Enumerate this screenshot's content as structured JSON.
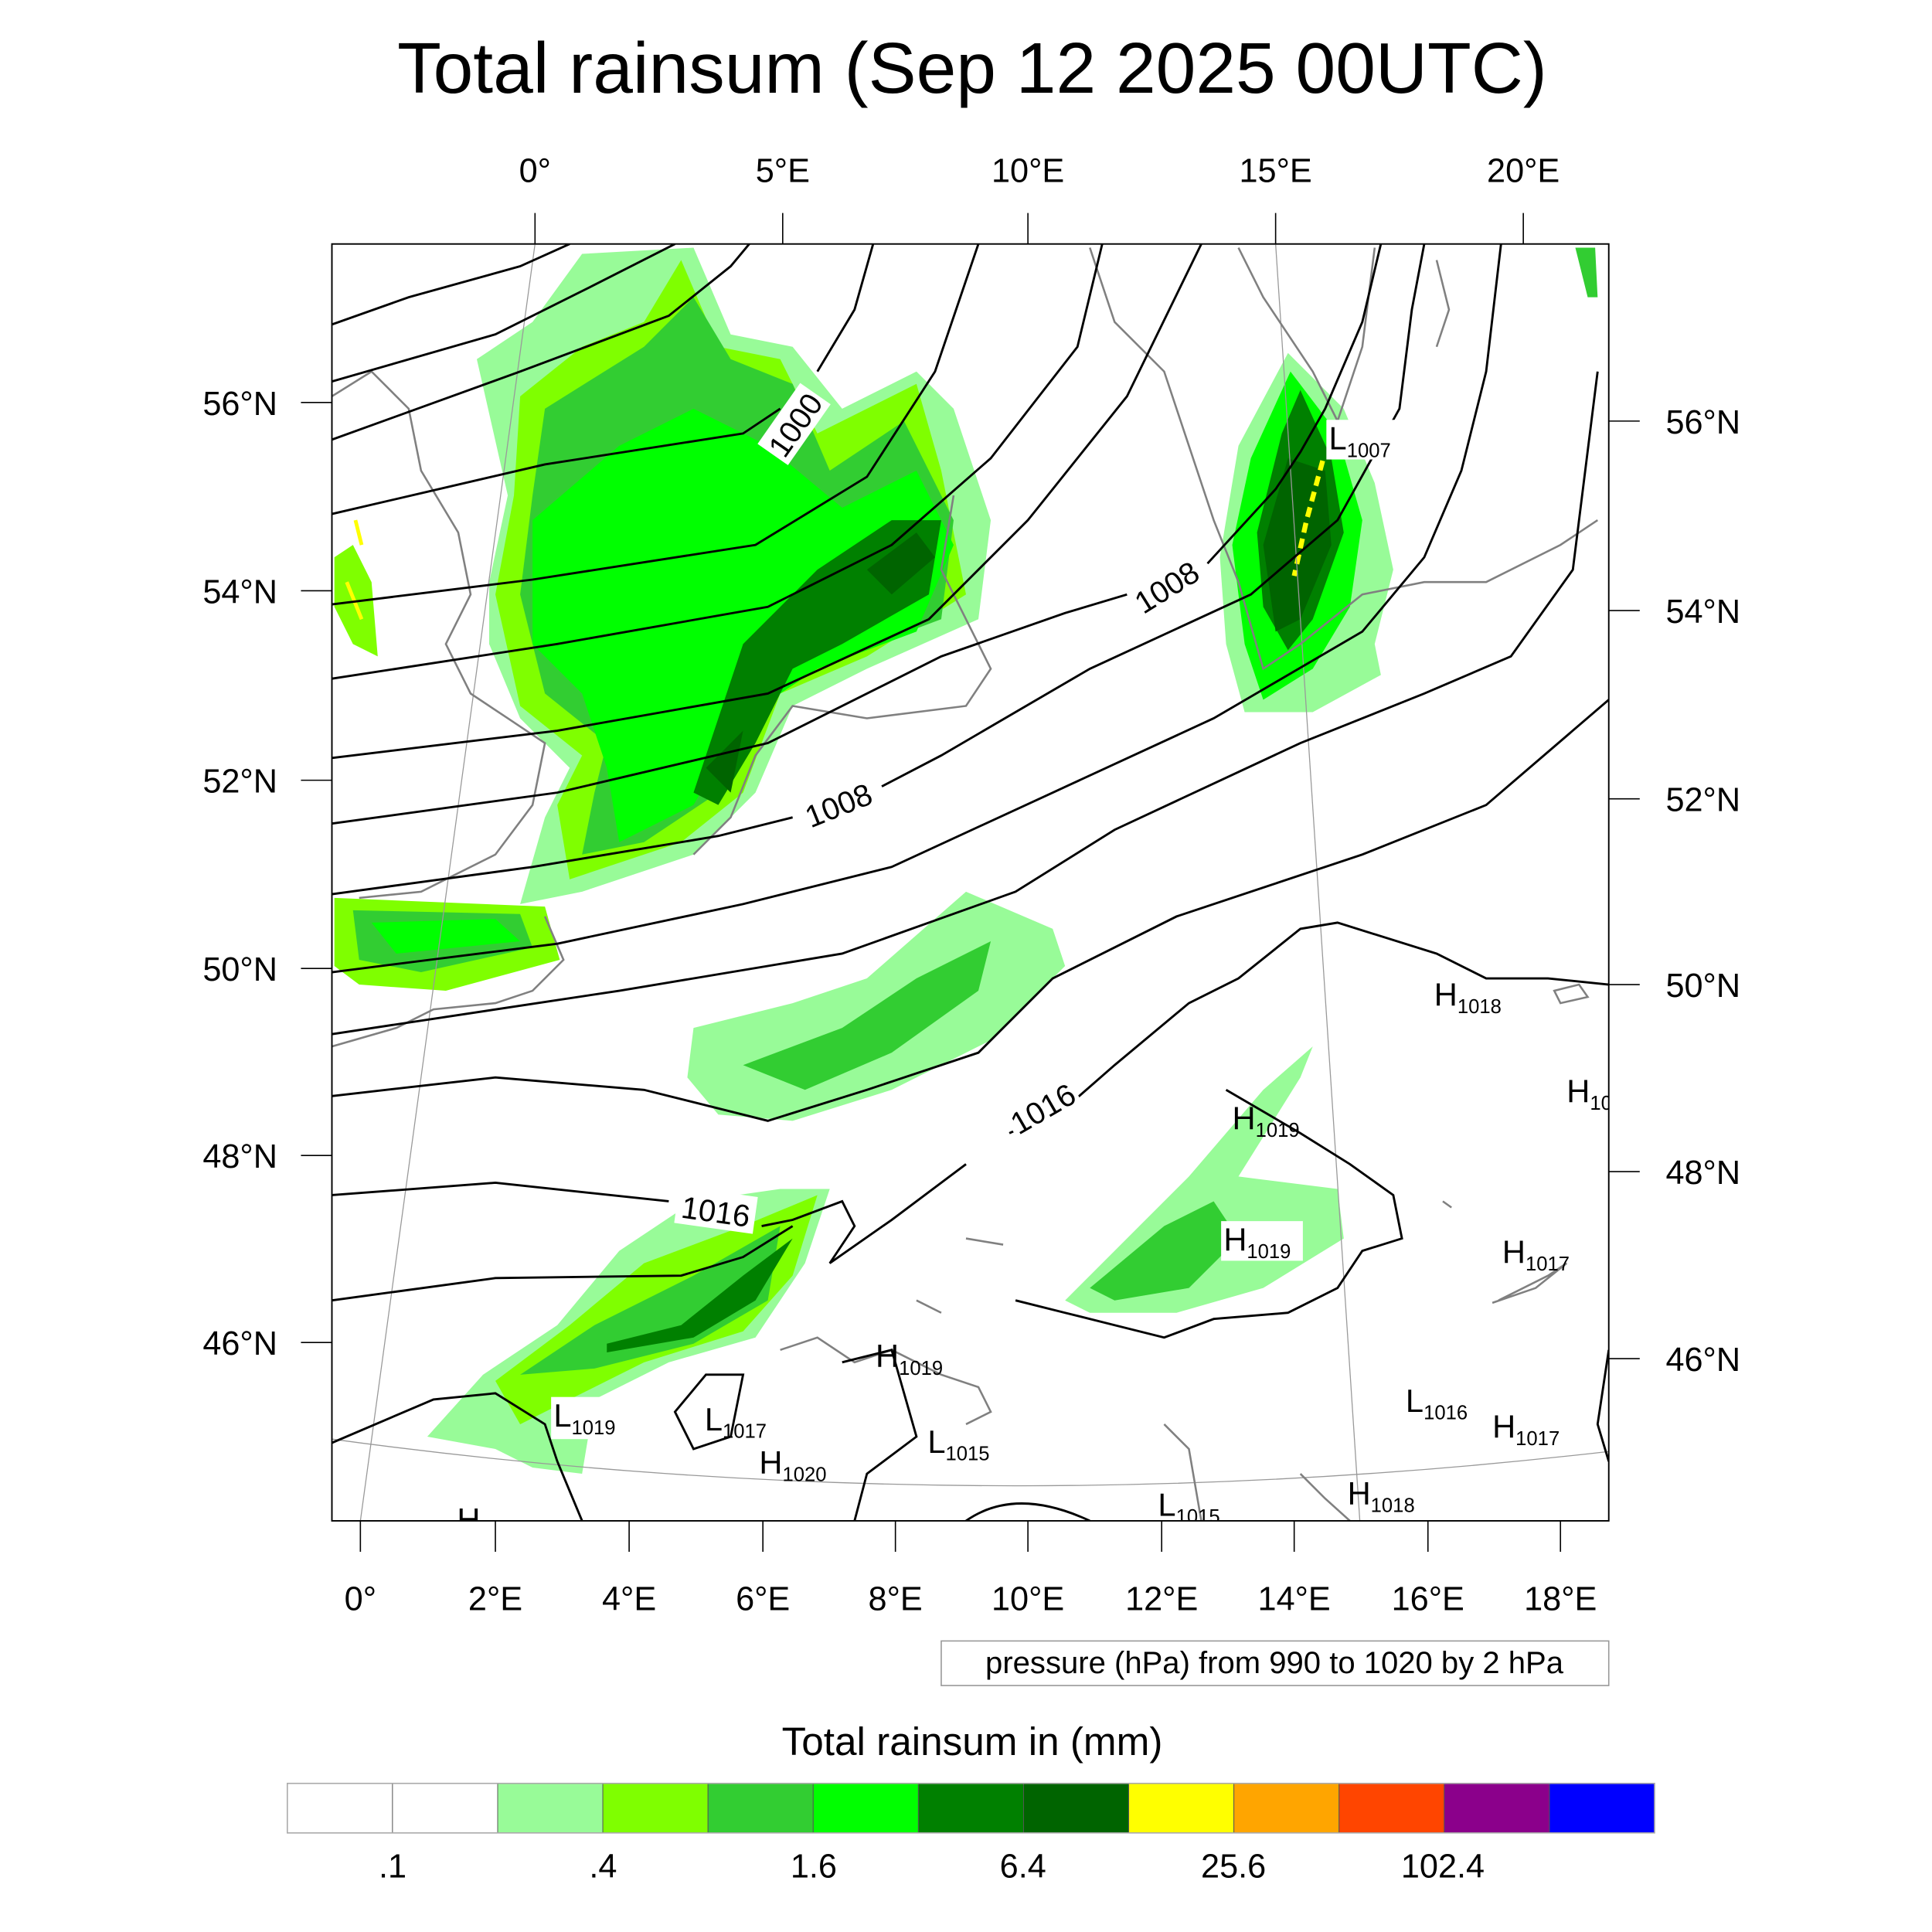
{
  "title": "Total rainsum (Sep 12 2025 00UTC)",
  "top_lon_labels": [
    "0°",
    "5°E",
    "10°E",
    "15°E",
    "20°E"
  ],
  "bottom_lon_labels": [
    "0°",
    "2°E",
    "4°E",
    "6°E",
    "8°E",
    "10°E",
    "12°E",
    "14°E",
    "16°E",
    "18°E"
  ],
  "left_lat_labels": [
    "56°N",
    "54°N",
    "52°N",
    "50°N",
    "48°N",
    "46°N"
  ],
  "right_lat_labels": [
    "56°N",
    "54°N",
    "52°N",
    "50°N",
    "48°N",
    "46°N"
  ],
  "contour_labels": [
    "1000",
    "1008",
    "1008",
    "1016",
    "1016"
  ],
  "pressure_centers": [
    {
      "type": "L",
      "value": "1007"
    },
    {
      "type": "H",
      "value": "1018"
    },
    {
      "type": "H",
      "value": "10"
    },
    {
      "type": "H",
      "value": "1019"
    },
    {
      "type": "H",
      "value": "1019"
    },
    {
      "type": "H",
      "value": "1017"
    },
    {
      "type": "H",
      "value": "1019"
    },
    {
      "type": "L",
      "value": "1019"
    },
    {
      "type": "L",
      "value": "1017"
    },
    {
      "type": "H",
      "value": "1020"
    },
    {
      "type": "L",
      "value": "1015"
    },
    {
      "type": "L",
      "value": "1016"
    },
    {
      "type": "H",
      "value": "1017"
    },
    {
      "type": "H",
      "value": "1018"
    },
    {
      "type": "L",
      "value": "1015"
    },
    {
      "type": "H",
      "value": ""
    }
  ],
  "pressure_note": "pressure (hPa) from 990 to 1020 by 2 hPa",
  "colorbar": {
    "title": "Total rainsum in (mm)",
    "colors": [
      "#FFFFFF",
      "#FFFFFF",
      "#98FB98",
      "#7FFF00",
      "#32CD32",
      "#00FF00",
      "#008000",
      "#006400",
      "#FFFF00",
      "#FFA500",
      "#FF4500",
      "#8B008B",
      "#0000FF"
    ],
    "labels": [
      ".1",
      ".4",
      "1.6",
      "6.4",
      "25.6",
      "102.4"
    ]
  },
  "chart_data": {
    "type": "heatmap",
    "title": "Total rainsum (Sep 12 2025 00UTC)",
    "variable": "Total rainsum in (mm)",
    "overlay": "pressure (hPa) from 990 to 1020 by 2 hPa",
    "lon_range": [
      -0.5,
      18.5
    ],
    "lat_range": [
      44,
      57.5
    ],
    "color_levels": [
      0.1,
      0.2,
      0.4,
      0.8,
      1.6,
      3.2,
      6.4,
      12.8,
      25.6,
      51.2,
      102.4,
      204.8
    ]
  }
}
